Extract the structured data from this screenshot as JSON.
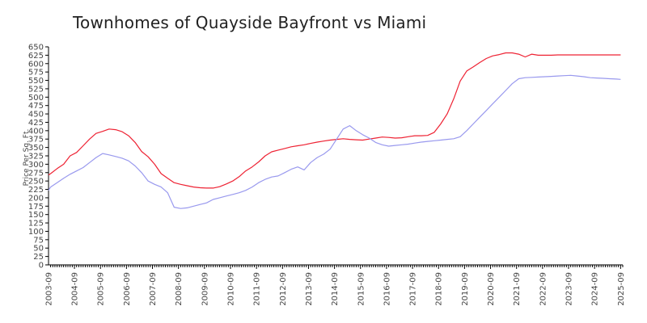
{
  "chart_data": {
    "type": "line",
    "title": "Townhomes of Quayside Bayfront vs Miami",
    "xlabel": "",
    "ylabel": "Price Per Sq. Ft.",
    "ylim": [
      0,
      650
    ],
    "y_ticks": [
      "0",
      "25",
      "50",
      "75",
      "100",
      "125",
      "150",
      "175",
      "200",
      "225",
      "250",
      "275",
      "300",
      "325",
      "350",
      "375",
      "400",
      "425",
      "450",
      "475",
      "500",
      "525",
      "550",
      "575",
      "600",
      "625",
      "650"
    ],
    "x_tick_labels": [
      "2003-09",
      "2004-09",
      "2005-09",
      "2006-09",
      "2007-09",
      "2008-09",
      "2009-09",
      "2010-09",
      "2011-09",
      "2012-09",
      "2013-09",
      "2014-09",
      "2015-09",
      "2016-09",
      "2017-09",
      "2018-09",
      "2019-09",
      "2020-09",
      "2021-09",
      "2022-09",
      "2023-09",
      "2024-09",
      "2025-09"
    ],
    "grid": false,
    "legend": "none",
    "series": [
      {
        "color": "#ee2233",
        "x": [
          2003.67,
          2003.75,
          2004.0,
          2004.25,
          2004.5,
          2004.75,
          2005.0,
          2005.25,
          2005.5,
          2005.75,
          2006.0,
          2006.25,
          2006.5,
          2006.75,
          2007.0,
          2007.25,
          2007.5,
          2007.75,
          2008.0,
          2008.25,
          2008.5,
          2008.75,
          2009.0,
          2009.25,
          2009.5,
          2009.75,
          2010.0,
          2010.25,
          2010.5,
          2010.75,
          2011.0,
          2011.25,
          2011.5,
          2011.75,
          2012.0,
          2012.25,
          2012.5,
          2012.75,
          2013.0,
          2013.25,
          2013.5,
          2013.75,
          2014.0,
          2014.25,
          2014.5,
          2014.75,
          2015.0,
          2015.25,
          2015.5,
          2015.75,
          2016.0,
          2016.25,
          2016.5,
          2016.75,
          2017.0,
          2017.25,
          2017.5,
          2017.75,
          2018.0,
          2018.25,
          2018.5,
          2018.75,
          2019.0,
          2019.25,
          2019.5,
          2019.75,
          2020.0,
          2020.25,
          2020.5,
          2020.75,
          2021.0,
          2021.25,
          2021.5,
          2021.75,
          2022.0,
          2022.25,
          2022.5,
          2022.75,
          2023.0,
          2023.25,
          2023.5,
          2023.75,
          2024.0,
          2024.25,
          2024.5,
          2024.75,
          2025.0,
          2025.25,
          2025.5,
          2025.67
        ],
        "values": [
          268,
          272,
          287,
          300,
          325,
          335,
          355,
          375,
          392,
          398,
          405,
          403,
          397,
          385,
          365,
          338,
          322,
          300,
          272,
          258,
          245,
          240,
          236,
          232,
          230,
          229,
          229,
          233,
          241,
          250,
          263,
          280,
          292,
          307,
          325,
          337,
          342,
          347,
          352,
          355,
          358,
          362,
          366,
          369,
          372,
          374,
          376,
          374,
          373,
          372,
          375,
          378,
          381,
          380,
          378,
          379,
          382,
          385,
          385,
          386,
          395,
          420,
          450,
          495,
          548,
          578,
          590,
          603,
          615,
          623,
          627,
          632,
          632,
          628,
          620,
          628,
          625,
          625,
          625,
          626,
          626,
          626,
          626,
          626,
          626,
          626,
          626,
          626,
          626,
          626
        ],
        "name": ""
      },
      {
        "color": "#9999ee",
        "x": [
          2003.67,
          2003.75,
          2004.0,
          2004.25,
          2004.5,
          2004.75,
          2005.0,
          2005.25,
          2005.5,
          2005.75,
          2006.0,
          2006.25,
          2006.5,
          2006.75,
          2007.0,
          2007.25,
          2007.5,
          2007.75,
          2008.0,
          2008.25,
          2008.5,
          2008.75,
          2009.0,
          2009.25,
          2009.5,
          2009.75,
          2010.0,
          2010.25,
          2010.5,
          2010.75,
          2011.0,
          2011.25,
          2011.5,
          2011.75,
          2012.0,
          2012.25,
          2012.5,
          2012.75,
          2013.0,
          2013.25,
          2013.5,
          2013.75,
          2014.0,
          2014.25,
          2014.5,
          2014.75,
          2015.0,
          2015.25,
          2015.5,
          2015.75,
          2016.0,
          2016.25,
          2016.5,
          2016.75,
          2017.0,
          2017.25,
          2017.5,
          2017.75,
          2018.0,
          2018.25,
          2018.5,
          2018.75,
          2019.0,
          2019.25,
          2019.5,
          2019.75,
          2020.0,
          2020.25,
          2020.5,
          2020.75,
          2021.0,
          2021.25,
          2021.5,
          2021.75,
          2022.0,
          2022.25,
          2022.5,
          2022.75,
          2023.0,
          2023.25,
          2023.5,
          2023.75,
          2024.0,
          2024.25,
          2024.5,
          2024.75,
          2025.0,
          2025.25,
          2025.5,
          2025.67
        ],
        "values": [
          222,
          232,
          245,
          258,
          270,
          280,
          290,
          305,
          320,
          332,
          328,
          323,
          318,
          310,
          295,
          275,
          250,
          240,
          232,
          215,
          172,
          168,
          170,
          175,
          180,
          185,
          195,
          200,
          205,
          210,
          215,
          222,
          232,
          245,
          255,
          262,
          265,
          275,
          285,
          292,
          283,
          305,
          320,
          330,
          345,
          375,
          405,
          415,
          400,
          388,
          378,
          365,
          358,
          354,
          356,
          358,
          360,
          363,
          366,
          368,
          370,
          372,
          374,
          376,
          382,
          400,
          420,
          440,
          460,
          480,
          500,
          520,
          540,
          555,
          558,
          559,
          560,
          561,
          562,
          563,
          564,
          565,
          563,
          561,
          558,
          557,
          556,
          555,
          554,
          553
        ],
        "name": ""
      }
    ]
  }
}
